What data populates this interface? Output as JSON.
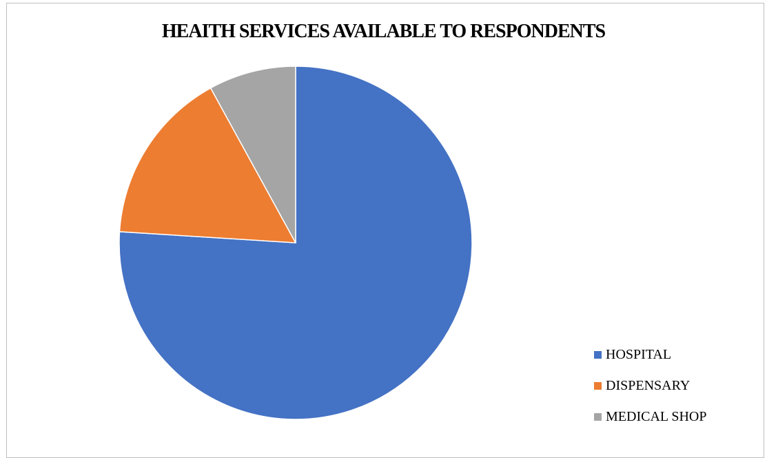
{
  "chart_data": {
    "type": "pie",
    "title": "HEAITH SERVICES AVAILABLE TO RESPONDENTS",
    "categories": [
      "HOSPITAL",
      "DISPENSARY",
      "MEDICAL SHOP"
    ],
    "values": [
      76,
      16,
      8
    ],
    "colors": [
      "#4472c4",
      "#ed7d31",
      "#a5a5a5"
    ],
    "start_angle": "12 o'clock",
    "direction": "clockwise",
    "legend_position": "bottom-right"
  }
}
